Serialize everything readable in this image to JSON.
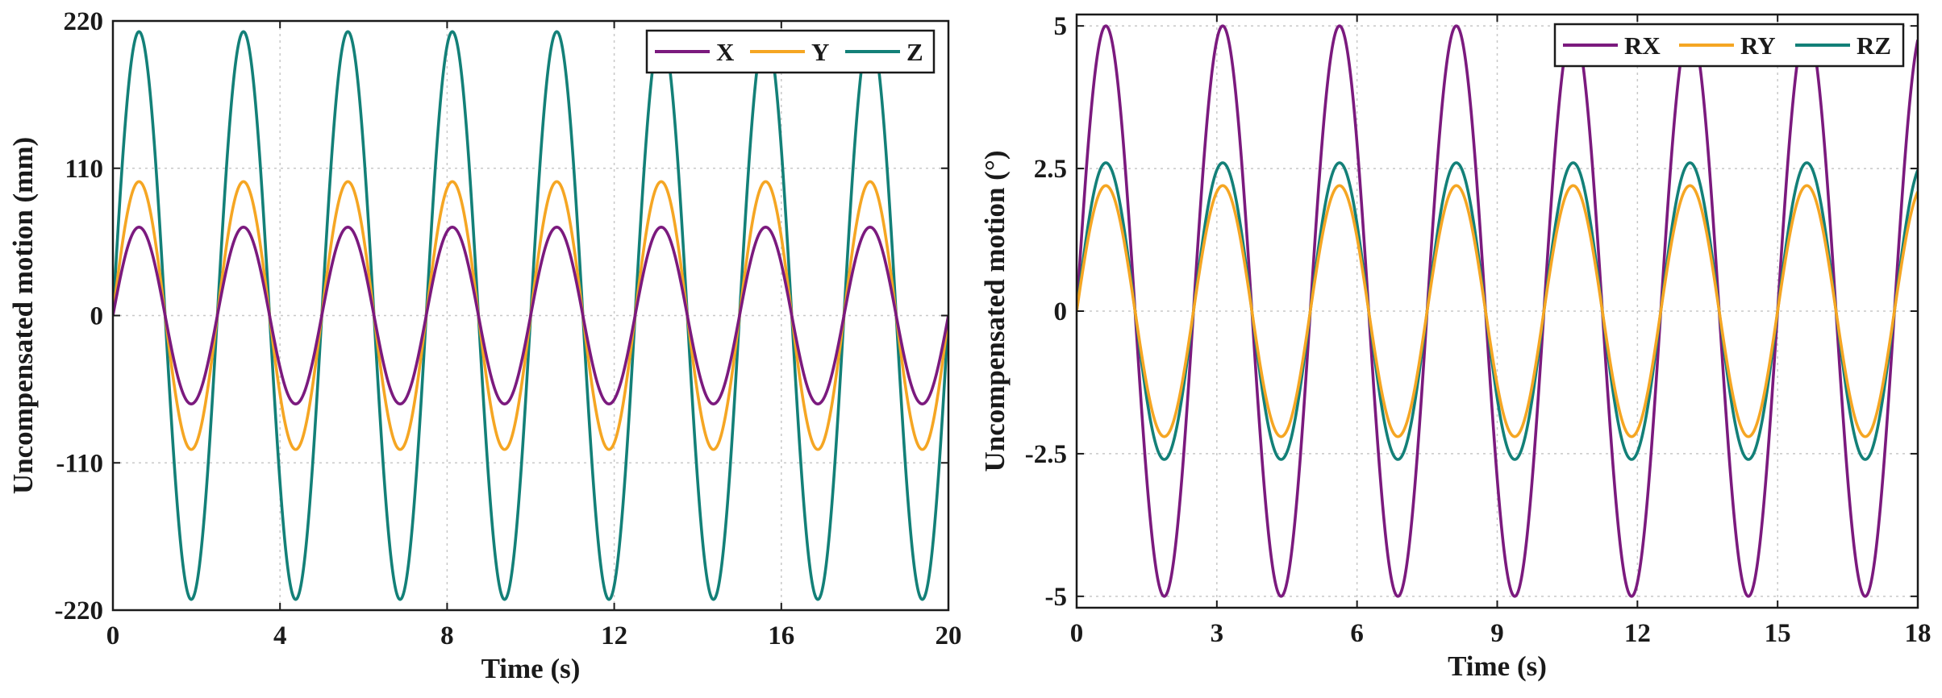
{
  "chart_data": [
    {
      "type": "line",
      "xlabel": "Time (s)",
      "ylabel": "Uncompensated motion (mm)",
      "xlim": [
        0,
        20
      ],
      "ylim": [
        -220,
        220
      ],
      "xticks": [
        0,
        4,
        8,
        12,
        16,
        20
      ],
      "yticks": [
        -220,
        -110,
        0,
        110,
        220
      ],
      "grid": true,
      "legend": "top-right",
      "period_s": 2.5,
      "series": [
        {
          "name": "X",
          "color": "#7b1a7e",
          "amplitude": 66,
          "z": 3,
          "x": [
            0,
            0.625,
            1.25,
            1.875,
            2.5,
            3.125,
            3.75,
            4.375,
            5,
            5.625,
            6.25,
            6.875,
            7.5,
            8.125,
            8.75,
            9.375,
            10,
            10.625,
            11.25,
            11.875,
            12.5,
            13.125,
            13.75,
            14.375,
            15,
            15.625,
            16.25,
            16.875,
            17.5,
            18.125,
            18.75,
            19.375,
            20
          ],
          "y": [
            0,
            66,
            0,
            -66,
            0,
            66,
            0,
            -66,
            0,
            66,
            0,
            -66,
            0,
            66,
            0,
            -66,
            0,
            66,
            0,
            -66,
            0,
            66,
            0,
            -66,
            0,
            66,
            0,
            -66,
            0,
            66,
            0,
            -66,
            0
          ]
        },
        {
          "name": "Y",
          "color": "#f5a623",
          "amplitude": 100,
          "z": 2,
          "x": [
            0,
            0.625,
            1.25,
            1.875,
            2.5,
            3.125,
            3.75,
            4.375,
            5,
            5.625,
            6.25,
            6.875,
            7.5,
            8.125,
            8.75,
            9.375,
            10,
            10.625,
            11.25,
            11.875,
            12.5,
            13.125,
            13.75,
            14.375,
            15,
            15.625,
            16.25,
            16.875,
            17.5,
            18.125,
            18.75,
            19.375,
            20
          ],
          "y": [
            0,
            100,
            0,
            -100,
            0,
            100,
            0,
            -100,
            0,
            100,
            0,
            -100,
            0,
            100,
            0,
            -100,
            0,
            100,
            0,
            -100,
            0,
            100,
            0,
            -100,
            0,
            100,
            0,
            -100,
            0,
            100,
            0,
            -100,
            0
          ]
        },
        {
          "name": "Z",
          "color": "#138078",
          "amplitude": 212,
          "z": 1,
          "x": [
            0,
            0.625,
            1.25,
            1.875,
            2.5,
            3.125,
            3.75,
            4.375,
            5,
            5.625,
            6.25,
            6.875,
            7.5,
            8.125,
            8.75,
            9.375,
            10,
            10.625,
            11.25,
            11.875,
            12.5,
            13.125,
            13.75,
            14.375,
            15,
            15.625,
            16.25,
            16.875,
            17.5,
            18.125,
            18.75,
            19.375,
            20
          ],
          "y": [
            0,
            212,
            0,
            -212,
            0,
            212,
            0,
            -212,
            0,
            212,
            0,
            -212,
            0,
            212,
            0,
            -212,
            0,
            212,
            0,
            -212,
            0,
            212,
            0,
            -212,
            0,
            212,
            0,
            -212,
            0,
            212,
            0,
            -212,
            0
          ]
        }
      ]
    },
    {
      "type": "line",
      "xlabel": "Time (s)",
      "ylabel": "Uncompensated motion (°)",
      "xlim": [
        0,
        18
      ],
      "ylim": [
        -5.2,
        5.2
      ],
      "xticks": [
        0,
        3,
        6,
        9,
        12,
        15,
        18
      ],
      "yticks": [
        -5,
        -2.5,
        0,
        2.5,
        5
      ],
      "grid": true,
      "legend": "top-right",
      "period_s": 2.5,
      "series": [
        {
          "name": "RX",
          "color": "#7b1a7e",
          "amplitude": 5,
          "z": 1,
          "x": [
            0,
            0.625,
            1.25,
            1.875,
            2.5,
            3.125,
            3.75,
            4.375,
            5,
            5.625,
            6.25,
            6.875,
            7.5,
            8.125,
            8.75,
            9.375,
            10,
            10.625,
            11.25,
            11.875,
            12.5,
            13.125,
            13.75,
            14.375,
            15,
            15.625,
            16.25,
            16.875,
            17.5,
            18
          ],
          "y": [
            0,
            5,
            0,
            -5,
            0,
            5,
            0,
            -5,
            0,
            5,
            0,
            -5,
            0,
            5,
            0,
            -5,
            0,
            5,
            0,
            -5,
            0,
            5,
            0,
            -5,
            0,
            5,
            0,
            -5,
            0,
            4.76
          ]
        },
        {
          "name": "RY",
          "color": "#f5a623",
          "amplitude": 2.2,
          "z": 3,
          "x": [
            0,
            0.625,
            1.25,
            1.875,
            2.5,
            3.125,
            3.75,
            4.375,
            5,
            5.625,
            6.25,
            6.875,
            7.5,
            8.125,
            8.75,
            9.375,
            10,
            10.625,
            11.25,
            11.875,
            12.5,
            13.125,
            13.75,
            14.375,
            15,
            15.625,
            16.25,
            16.875,
            17.5,
            18
          ],
          "y": [
            0,
            2.2,
            0,
            -2.2,
            0,
            2.2,
            0,
            -2.2,
            0,
            2.2,
            0,
            -2.2,
            0,
            2.2,
            0,
            -2.2,
            0,
            2.2,
            0,
            -2.2,
            0,
            2.2,
            0,
            -2.2,
            0,
            2.2,
            0,
            -2.2,
            0,
            2.09
          ]
        },
        {
          "name": "RZ",
          "color": "#138078",
          "amplitude": 2.6,
          "z": 2,
          "x": [
            0,
            0.625,
            1.25,
            1.875,
            2.5,
            3.125,
            3.75,
            4.375,
            5,
            5.625,
            6.25,
            6.875,
            7.5,
            8.125,
            8.75,
            9.375,
            10,
            10.625,
            11.25,
            11.875,
            12.5,
            13.125,
            13.75,
            14.375,
            15,
            15.625,
            16.25,
            16.875,
            17.5,
            18
          ],
          "y": [
            0,
            2.6,
            0,
            -2.6,
            0,
            2.6,
            0,
            -2.6,
            0,
            2.6,
            0,
            -2.6,
            0,
            2.6,
            0,
            -2.6,
            0,
            2.6,
            0,
            -2.6,
            0,
            2.6,
            0,
            -2.6,
            0,
            2.6,
            0,
            -2.6,
            0,
            2.47
          ]
        }
      ]
    }
  ]
}
